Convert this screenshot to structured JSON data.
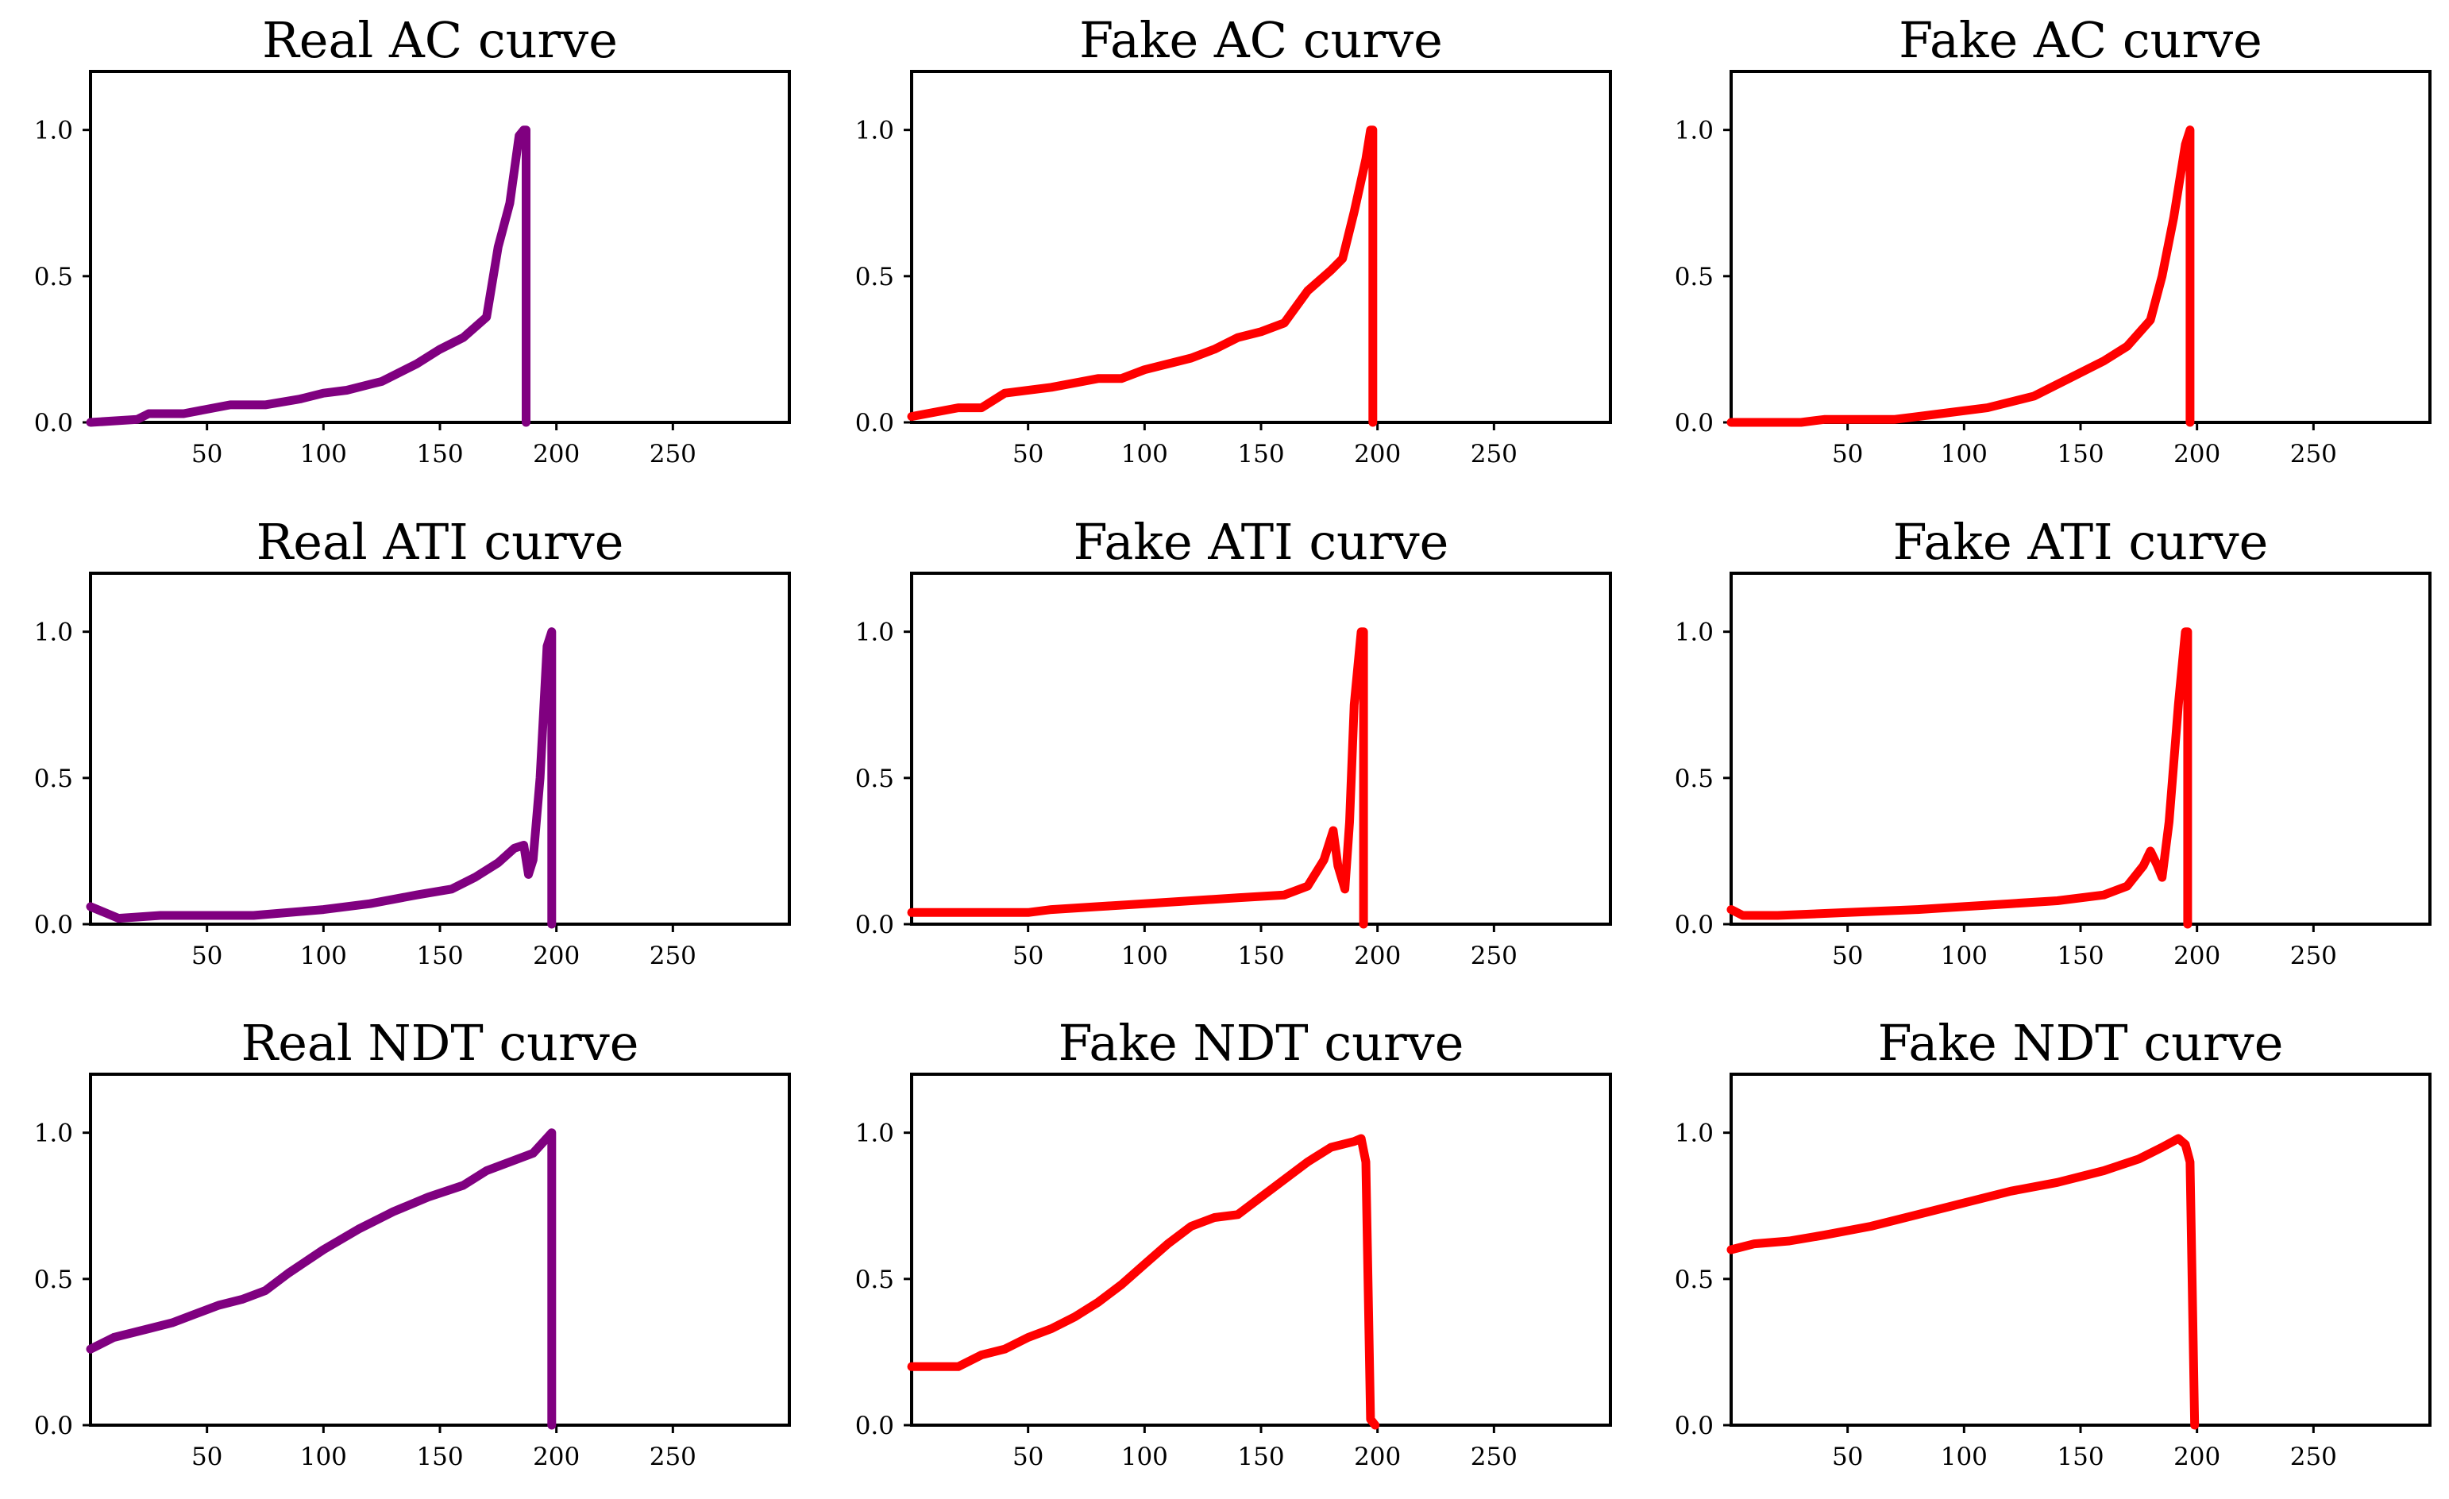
{
  "chart_data": [
    {
      "type": "line",
      "title": "Real AC curve",
      "color": "#800080",
      "xlim": [
        0,
        300
      ],
      "ylim": [
        0,
        1.2
      ],
      "xticks": [
        50,
        100,
        150,
        200,
        250
      ],
      "xtick_labels": [
        "50",
        "100",
        "150",
        "200",
        "250"
      ],
      "yticks": [
        0,
        0.5,
        1.0
      ],
      "ytick_labels": [
        "0.0",
        "0.5",
        "1.0"
      ],
      "series": [
        {
          "name": "Real AC curve",
          "x": [
            0,
            20,
            25,
            40,
            60,
            75,
            90,
            100,
            110,
            120,
            125,
            140,
            150,
            160,
            170,
            175,
            180,
            184,
            186,
            187,
            187
          ],
          "y": [
            0.0,
            0.01,
            0.03,
            0.03,
            0.06,
            0.06,
            0.08,
            0.1,
            0.11,
            0.13,
            0.14,
            0.2,
            0.25,
            0.29,
            0.36,
            0.6,
            0.75,
            0.98,
            1.0,
            1.0,
            0.0
          ]
        }
      ]
    },
    {
      "type": "line",
      "title": "Fake AC curve",
      "color": "#ff0000",
      "xlim": [
        0,
        300
      ],
      "ylim": [
        0,
        1.2
      ],
      "xticks": [
        50,
        100,
        150,
        200,
        250
      ],
      "xtick_labels": [
        "50",
        "100",
        "150",
        "200",
        "250"
      ],
      "yticks": [
        0,
        0.5,
        1.0
      ],
      "ytick_labels": [
        "0.0",
        "0.5",
        "1.0"
      ],
      "series": [
        {
          "name": "Fake AC curve",
          "x": [
            0,
            20,
            30,
            40,
            60,
            80,
            90,
            100,
            120,
            130,
            140,
            150,
            160,
            170,
            180,
            185,
            190,
            195,
            197,
            198,
            198
          ],
          "y": [
            0.02,
            0.05,
            0.05,
            0.1,
            0.12,
            0.15,
            0.15,
            0.18,
            0.22,
            0.25,
            0.29,
            0.31,
            0.34,
            0.45,
            0.52,
            0.56,
            0.72,
            0.9,
            1.0,
            1.0,
            0.0
          ]
        }
      ]
    },
    {
      "type": "line",
      "title": "Fake AC curve",
      "color": "#ff0000",
      "xlim": [
        0,
        300
      ],
      "ylim": [
        0,
        1.2
      ],
      "xticks": [
        50,
        100,
        150,
        200,
        250
      ],
      "xtick_labels": [
        "50",
        "100",
        "150",
        "200",
        "250"
      ],
      "yticks": [
        0,
        0.5,
        1.0
      ],
      "ytick_labels": [
        "0.0",
        "0.5",
        "1.0"
      ],
      "series": [
        {
          "name": "Fake AC curve",
          "x": [
            0,
            30,
            40,
            70,
            90,
            110,
            130,
            145,
            160,
            170,
            180,
            185,
            190,
            195,
            197,
            197
          ],
          "y": [
            0.0,
            0.0,
            0.01,
            0.01,
            0.03,
            0.05,
            0.09,
            0.15,
            0.21,
            0.26,
            0.35,
            0.5,
            0.7,
            0.95,
            1.0,
            0.0
          ]
        }
      ]
    },
    {
      "type": "line",
      "title": "Real ATI curve",
      "color": "#800080",
      "xlim": [
        0,
        300
      ],
      "ylim": [
        0,
        1.2
      ],
      "xticks": [
        50,
        100,
        150,
        200,
        250
      ],
      "xtick_labels": [
        "50",
        "100",
        "150",
        "200",
        "250"
      ],
      "yticks": [
        0,
        0.5,
        1.0
      ],
      "ytick_labels": [
        "0.0",
        "0.5",
        "1.0"
      ],
      "series": [
        {
          "name": "Real ATI curve",
          "x": [
            0,
            12,
            30,
            50,
            70,
            100,
            120,
            140,
            155,
            165,
            175,
            182,
            186,
            188,
            190,
            193,
            196,
            198,
            198
          ],
          "y": [
            0.06,
            0.02,
            0.03,
            0.03,
            0.03,
            0.05,
            0.07,
            0.1,
            0.12,
            0.16,
            0.21,
            0.26,
            0.27,
            0.17,
            0.22,
            0.5,
            0.95,
            1.0,
            0.0
          ]
        }
      ]
    },
    {
      "type": "line",
      "title": "Fake ATI curve",
      "color": "#ff0000",
      "xlim": [
        0,
        300
      ],
      "ylim": [
        0,
        1.2
      ],
      "xticks": [
        50,
        100,
        150,
        200,
        250
      ],
      "xtick_labels": [
        "50",
        "100",
        "150",
        "200",
        "250"
      ],
      "yticks": [
        0,
        0.5,
        1.0
      ],
      "ytick_labels": [
        "0.0",
        "0.5",
        "1.0"
      ],
      "series": [
        {
          "name": "Fake ATI curve",
          "x": [
            0,
            40,
            50,
            60,
            80,
            100,
            120,
            140,
            160,
            170,
            177,
            181,
            183,
            186,
            188,
            190,
            193,
            194,
            194
          ],
          "y": [
            0.04,
            0.04,
            0.04,
            0.05,
            0.06,
            0.07,
            0.08,
            0.09,
            0.1,
            0.13,
            0.22,
            0.32,
            0.2,
            0.12,
            0.35,
            0.75,
            1.0,
            1.0,
            0.0
          ]
        }
      ]
    },
    {
      "type": "line",
      "title": "Fake ATI curve",
      "color": "#ff0000",
      "xlim": [
        0,
        300
      ],
      "ylim": [
        0,
        1.2
      ],
      "xticks": [
        50,
        100,
        150,
        200,
        250
      ],
      "xtick_labels": [
        "50",
        "100",
        "150",
        "200",
        "250"
      ],
      "yticks": [
        0,
        0.5,
        1.0
      ],
      "ytick_labels": [
        "0.0",
        "0.5",
        "1.0"
      ],
      "series": [
        {
          "name": "Fake ATI curve",
          "x": [
            0,
            5,
            20,
            50,
            80,
            100,
            120,
            140,
            160,
            170,
            177,
            180,
            183,
            185,
            188,
            192,
            195,
            196,
            196
          ],
          "y": [
            0.05,
            0.03,
            0.03,
            0.04,
            0.05,
            0.06,
            0.07,
            0.08,
            0.1,
            0.13,
            0.2,
            0.25,
            0.2,
            0.16,
            0.35,
            0.75,
            1.0,
            1.0,
            0.0
          ]
        }
      ]
    },
    {
      "type": "line",
      "title": "Real NDT curve",
      "color": "#800080",
      "xlim": [
        0,
        300
      ],
      "ylim": [
        0,
        1.2
      ],
      "xticks": [
        50,
        100,
        150,
        200,
        250
      ],
      "xtick_labels": [
        "50",
        "100",
        "150",
        "200",
        "250"
      ],
      "yticks": [
        0,
        0.5,
        1.0
      ],
      "ytick_labels": [
        "0.0",
        "0.5",
        "1.0"
      ],
      "series": [
        {
          "name": "Real NDT curve",
          "x": [
            0,
            10,
            25,
            35,
            45,
            55,
            65,
            75,
            85,
            100,
            115,
            130,
            145,
            160,
            170,
            180,
            190,
            198,
            198
          ],
          "y": [
            0.26,
            0.3,
            0.33,
            0.35,
            0.38,
            0.41,
            0.43,
            0.46,
            0.52,
            0.6,
            0.67,
            0.73,
            0.78,
            0.82,
            0.87,
            0.9,
            0.93,
            1.0,
            0.0
          ]
        }
      ]
    },
    {
      "type": "line",
      "title": "Fake NDT curve",
      "color": "#ff0000",
      "xlim": [
        0,
        300
      ],
      "ylim": [
        0,
        1.2
      ],
      "xticks": [
        50,
        100,
        150,
        200,
        250
      ],
      "xtick_labels": [
        "50",
        "100",
        "150",
        "200",
        "250"
      ],
      "yticks": [
        0,
        0.5,
        1.0
      ],
      "ytick_labels": [
        "0.0",
        "0.5",
        "1.0"
      ],
      "series": [
        {
          "name": "Fake NDT curve",
          "x": [
            0,
            20,
            30,
            40,
            50,
            60,
            70,
            80,
            90,
            100,
            110,
            120,
            130,
            140,
            150,
            160,
            170,
            180,
            190,
            193,
            195,
            197,
            199
          ],
          "y": [
            0.2,
            0.2,
            0.24,
            0.26,
            0.3,
            0.33,
            0.37,
            0.42,
            0.48,
            0.55,
            0.62,
            0.68,
            0.71,
            0.72,
            0.78,
            0.84,
            0.9,
            0.95,
            0.97,
            0.98,
            0.9,
            0.02,
            0.0
          ]
        }
      ]
    },
    {
      "type": "line",
      "title": "Fake NDT curve",
      "color": "#ff0000",
      "xlim": [
        0,
        300
      ],
      "ylim": [
        0,
        1.2
      ],
      "xticks": [
        50,
        100,
        150,
        200,
        250
      ],
      "xtick_labels": [
        "50",
        "100",
        "150",
        "200",
        "250"
      ],
      "yticks": [
        0,
        0.5,
        1.0
      ],
      "ytick_labels": [
        "0.0",
        "0.5",
        "1.0"
      ],
      "series": [
        {
          "name": "Fake NDT curve",
          "x": [
            0,
            10,
            25,
            40,
            60,
            80,
            100,
            120,
            140,
            160,
            175,
            185,
            192,
            195,
            197,
            199
          ],
          "y": [
            0.6,
            0.62,
            0.63,
            0.65,
            0.68,
            0.72,
            0.76,
            0.8,
            0.83,
            0.87,
            0.91,
            0.95,
            0.98,
            0.96,
            0.9,
            0.0
          ]
        }
      ]
    }
  ]
}
